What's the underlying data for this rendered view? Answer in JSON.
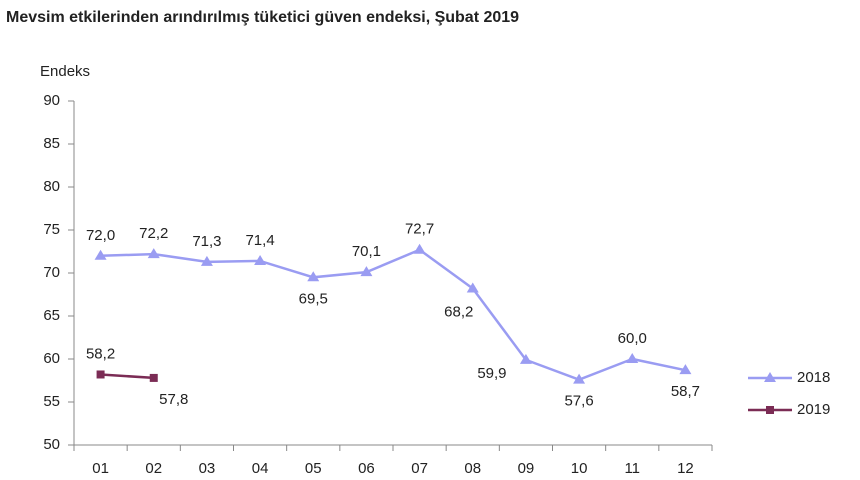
{
  "chart_data": {
    "type": "line",
    "title": "Mevsim etkilerinden arındırılmış tüketici güven endeksi, Şubat 2019",
    "ylabel": "Endeks",
    "categories": [
      "01",
      "02",
      "03",
      "04",
      "05",
      "06",
      "07",
      "08",
      "09",
      "10",
      "11",
      "12"
    ],
    "series": [
      {
        "name": "2018",
        "color": "#9a9cf2",
        "marker": "triangle",
        "values": [
          72.0,
          72.2,
          71.3,
          71.4,
          69.5,
          70.1,
          72.7,
          68.2,
          59.9,
          57.6,
          60.0,
          58.7
        ],
        "value_labels": [
          "72,0",
          "72,2",
          "71,3",
          "71,4",
          "69,5",
          "70,1",
          "72,7",
          "68,2",
          "59,9",
          "57,6",
          "60,0",
          "58,7"
        ]
      },
      {
        "name": "2019",
        "color": "#7b2c55",
        "marker": "square",
        "values": [
          58.2,
          57.8,
          null,
          null,
          null,
          null,
          null,
          null,
          null,
          null,
          null,
          null
        ],
        "value_labels": [
          "58,2",
          "57,8",
          null,
          null,
          null,
          null,
          null,
          null,
          null,
          null,
          null,
          null
        ]
      }
    ],
    "ylim": [
      50,
      90
    ],
    "yticks": [
      50,
      55,
      60,
      65,
      70,
      75,
      80,
      85,
      90
    ],
    "grid": false,
    "legend": "right"
  }
}
